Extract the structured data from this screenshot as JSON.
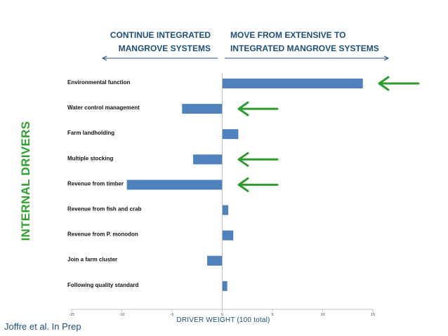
{
  "slide": {
    "header_left": [
      "CONTINUE INTEGRATED",
      "MANGROVE SYSTEMS"
    ],
    "header_right": [
      "MOVE FROM EXTENSIVE TO",
      "INTEGRATED MANGROVE SYSTEMS"
    ],
    "side_label": "INTERNAL DRIVERS",
    "citation": "Joffre et al. In Prep",
    "colors": {
      "header_text": "#1f4e79",
      "side_label": "#2ea12e",
      "arrows": "#2e9b2e",
      "bars": "#4f81bd"
    },
    "highlight_arrow_icon": "left-arrow-icon"
  },
  "chart_data": {
    "type": "bar",
    "orientation": "horizontal",
    "categories": [
      "Environmental function",
      "Water control management",
      "Farm landholding",
      "Multiple stocking",
      "Revenue from timber",
      "Revenue  from fish and crab",
      "Revenue from P. monodon",
      "Join a farm cluster",
      "Following  quality standard"
    ],
    "values": [
      14,
      -4,
      1.6,
      -2.9,
      -9.5,
      0.6,
      1.1,
      -1.5,
      0.5
    ],
    "highlighted": [
      true,
      true,
      false,
      true,
      true,
      false,
      false,
      false,
      false
    ],
    "xlabel": "DRIVER WEIGHT (100 total)",
    "xlim": [
      -15,
      15
    ],
    "xticks": [
      -15,
      -10,
      -5,
      0,
      5,
      10,
      15
    ],
    "grid": false,
    "legend": "none"
  }
}
